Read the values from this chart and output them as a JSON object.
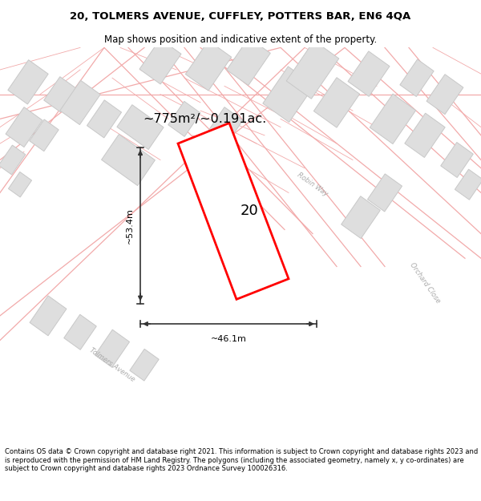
{
  "title_line1": "20, TOLMERS AVENUE, CUFFLEY, POTTERS BAR, EN6 4QA",
  "title_line2": "Map shows position and indicative extent of the property.",
  "area_text": "~775m²/~0.191ac.",
  "label_number": "20",
  "dim_width": "~46.1m",
  "dim_height": "~53.4m",
  "footer": "Contains OS data © Crown copyright and database right 2021. This information is subject to Crown copyright and database rights 2023 and is reproduced with the permission of HM Land Registry. The polygons (including the associated geometry, namely x, y co-ordinates) are subject to Crown copyright and database rights 2023 Ordnance Survey 100026316.",
  "map_bg": "#f7f7f7",
  "plot_fill": "#ffffff",
  "plot_edge": "#ff0000",
  "road_color": "#f2aaaa",
  "road_fill": "#ffffff",
  "building_fill": "#dedede",
  "building_edge": "#c8c8c8",
  "dim_line_color": "#333333",
  "text_color": "#000000",
  "road_label_color": "#aaaaaa"
}
